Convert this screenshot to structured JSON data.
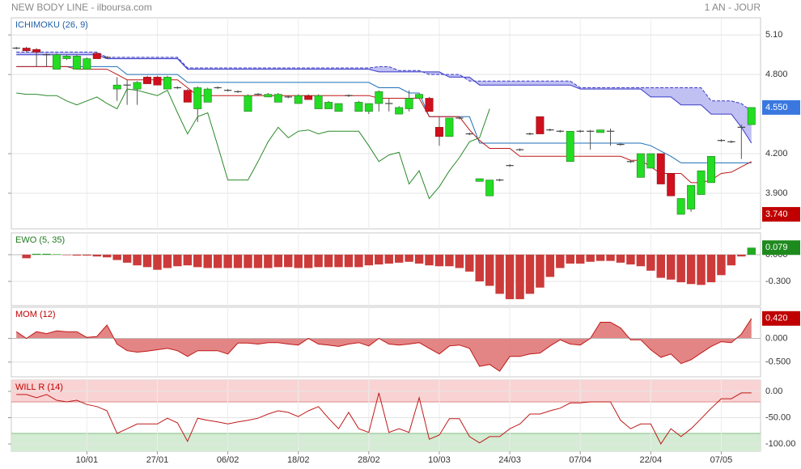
{
  "header": {
    "title": "NEW BODY LINE - ilboursa.com",
    "period": "1 AN - JOUR"
  },
  "chart_data": [
    {
      "type": "candlestick",
      "title": "ICHIMOKU (26, 9)",
      "title_color": "#1f5fa8",
      "ylim": [
        3.63,
        5.23
      ],
      "yticks": [
        {
          "value": 5.1,
          "label": "5.10"
        },
        {
          "value": 4.8,
          "label": "4.800"
        },
        {
          "value": 4.2,
          "label": "4.200"
        },
        {
          "value": 3.9,
          "label": "3.900"
        }
      ],
      "markers": [
        {
          "value": 4.55,
          "label": "4.550",
          "color": "#3a78e0"
        },
        {
          "value": 3.74,
          "label": "3.740",
          "color": "#c00000"
        }
      ],
      "up_color": "#22dd22",
      "down_color": "#d0101e",
      "open": [
        5.0,
        5.0,
        4.99,
        4.95,
        4.84,
        4.92,
        4.84,
        4.84,
        4.96,
        4.93,
        4.69,
        4.72,
        4.69,
        4.78,
        4.78,
        4.69,
        4.7,
        4.68,
        4.54,
        4.59,
        4.7,
        4.68,
        4.67,
        4.52,
        4.65,
        4.63,
        4.59,
        4.63,
        4.58,
        4.64,
        4.54,
        4.54,
        4.52,
        4.64,
        4.52,
        4.52,
        4.58,
        4.58,
        4.5,
        4.54,
        4.62,
        4.62,
        4.4,
        4.33,
        4.47,
        4.35,
        3.99,
        3.88,
        4.0,
        4.11,
        4.23,
        4.35,
        4.48,
        4.38,
        4.37,
        4.14,
        4.37,
        4.37,
        4.36,
        4.37,
        4.27,
        4.14,
        4.02,
        4.09,
        4.2,
        4.05,
        3.74,
        3.78,
        3.89,
        3.98,
        4.3,
        4.29,
        4.4,
        4.42
      ],
      "high": [
        5.01,
        5.01,
        5.0,
        4.96,
        4.96,
        4.95,
        4.95,
        4.93,
        4.97,
        4.94,
        4.78,
        4.76,
        4.75,
        4.79,
        4.79,
        4.79,
        4.71,
        4.69,
        4.71,
        4.7,
        4.71,
        4.69,
        4.68,
        4.65,
        4.66,
        4.66,
        4.66,
        4.64,
        4.65,
        4.65,
        4.65,
        4.6,
        4.58,
        4.65,
        4.6,
        4.58,
        4.68,
        4.62,
        4.56,
        4.68,
        4.65,
        4.63,
        4.48,
        4.47,
        4.48,
        4.36,
        4.01,
        4.0,
        4.01,
        4.12,
        4.24,
        4.36,
        4.48,
        4.39,
        4.38,
        4.37,
        4.38,
        4.38,
        4.38,
        4.39,
        4.28,
        4.15,
        4.2,
        4.2,
        4.2,
        4.05,
        3.86,
        3.96,
        4.07,
        4.18,
        4.31,
        4.3,
        4.42,
        4.55
      ],
      "low": [
        4.99,
        4.97,
        4.86,
        4.86,
        4.84,
        4.91,
        4.84,
        4.84,
        4.92,
        4.92,
        4.6,
        4.57,
        4.57,
        4.73,
        4.72,
        4.69,
        4.69,
        4.59,
        4.44,
        4.59,
        4.69,
        4.67,
        4.66,
        4.52,
        4.64,
        4.63,
        4.59,
        4.62,
        4.58,
        4.61,
        4.54,
        4.54,
        4.52,
        4.63,
        4.52,
        4.5,
        4.52,
        4.52,
        4.5,
        4.52,
        4.62,
        4.52,
        4.26,
        4.33,
        4.46,
        4.34,
        3.99,
        3.88,
        3.99,
        4.1,
        4.22,
        4.34,
        4.35,
        4.37,
        4.36,
        4.14,
        4.36,
        4.23,
        4.36,
        4.26,
        4.26,
        4.13,
        4.02,
        4.09,
        3.97,
        3.88,
        3.74,
        3.76,
        3.89,
        3.98,
        4.29,
        4.28,
        4.16,
        4.42
      ],
      "close": [
        5.0,
        4.98,
        4.97,
        4.95,
        4.95,
        4.94,
        4.94,
        4.92,
        4.92,
        4.93,
        4.72,
        4.72,
        4.74,
        4.73,
        4.72,
        4.78,
        4.7,
        4.59,
        4.7,
        4.69,
        4.7,
        4.68,
        4.67,
        4.64,
        4.65,
        4.65,
        4.65,
        4.63,
        4.64,
        4.61,
        4.64,
        4.59,
        4.58,
        4.64,
        4.59,
        4.58,
        4.67,
        4.58,
        4.55,
        4.62,
        4.65,
        4.52,
        4.33,
        4.47,
        4.47,
        4.35,
        4.01,
        4.0,
        4.0,
        4.11,
        4.23,
        4.35,
        4.35,
        4.38,
        4.37,
        4.37,
        4.37,
        4.37,
        4.38,
        4.37,
        4.27,
        4.14,
        4.2,
        4.2,
        3.97,
        3.88,
        3.86,
        3.96,
        4.07,
        4.18,
        4.3,
        4.29,
        4.4,
        4.55
      ],
      "tenkan_color": "#c01818",
      "tenkan": [
        4.86,
        4.86,
        4.86,
        4.86,
        4.86,
        4.86,
        4.84,
        4.84,
        4.84,
        4.84,
        4.8,
        4.76,
        4.76,
        4.76,
        4.76,
        4.76,
        4.76,
        4.7,
        4.64,
        4.64,
        4.64,
        4.64,
        4.64,
        4.64,
        4.64,
        4.64,
        4.64,
        4.64,
        4.64,
        4.64,
        4.64,
        4.64,
        4.64,
        4.64,
        4.64,
        4.64,
        4.62,
        4.62,
        4.62,
        4.62,
        4.62,
        4.48,
        4.48,
        4.48,
        4.48,
        4.38,
        4.3,
        4.24,
        4.24,
        4.24,
        4.18,
        4.18,
        4.18,
        4.18,
        4.18,
        4.18,
        4.18,
        4.18,
        4.18,
        4.18,
        4.18,
        4.15,
        4.15,
        4.1,
        4.05,
        4.05,
        4.05,
        3.98,
        3.98,
        4.0,
        4.05,
        4.06,
        4.1,
        4.14
      ],
      "kijun_color": "#1f6fb8",
      "kijun": [
        4.86,
        4.86,
        4.86,
        4.86,
        4.86,
        4.86,
        4.86,
        4.86,
        4.86,
        4.86,
        4.86,
        4.8,
        4.8,
        4.8,
        4.8,
        4.8,
        4.8,
        4.74,
        4.74,
        4.74,
        4.74,
        4.74,
        4.74,
        4.74,
        4.74,
        4.74,
        4.74,
        4.74,
        4.74,
        4.74,
        4.74,
        4.74,
        4.74,
        4.74,
        4.74,
        4.74,
        4.7,
        4.7,
        4.7,
        4.66,
        4.66,
        4.48,
        4.48,
        4.48,
        4.48,
        4.48,
        4.28,
        4.28,
        4.28,
        4.28,
        4.28,
        4.28,
        4.28,
        4.28,
        4.28,
        4.28,
        4.28,
        4.28,
        4.28,
        4.28,
        4.28,
        4.28,
        4.28,
        4.26,
        4.22,
        4.18,
        4.13,
        4.13,
        4.13,
        4.13,
        4.13,
        4.13,
        4.13,
        4.13
      ],
      "chikou_color": "#2a8a2a",
      "chikou": [
        4.66,
        4.65,
        4.65,
        4.64,
        4.64,
        4.6,
        4.57,
        4.6,
        4.63,
        4.58,
        4.54,
        4.69,
        4.68,
        4.66,
        4.64,
        4.68,
        4.51,
        4.35,
        4.48,
        4.51,
        4.26,
        4.0,
        4.0,
        4.0,
        4.14,
        4.29,
        4.4,
        4.32,
        4.37,
        4.38,
        4.35,
        4.37,
        4.37,
        4.37,
        4.37,
        4.26,
        4.14,
        4.19,
        4.21,
        3.97,
        4.07,
        3.86,
        3.95,
        4.07,
        4.17,
        4.29,
        4.32,
        4.54,
        null,
        null,
        null,
        null,
        null,
        null,
        null,
        null,
        null,
        null,
        null,
        null,
        null,
        null,
        null,
        null,
        null,
        null,
        null,
        null,
        null,
        null,
        null,
        null,
        null,
        null
      ],
      "cloud_color": "#b9b9f2",
      "cloud_line_color": "#3a3ac8",
      "cloud_upper": [
        4.97,
        4.97,
        4.97,
        4.97,
        4.97,
        4.97,
        4.97,
        4.97,
        4.97,
        4.93,
        4.93,
        4.93,
        4.93,
        4.93,
        4.93,
        4.93,
        4.93,
        4.85,
        4.85,
        4.85,
        4.85,
        4.85,
        4.85,
        4.85,
        4.85,
        4.85,
        4.85,
        4.85,
        4.85,
        4.85,
        4.85,
        4.85,
        4.85,
        4.85,
        4.85,
        4.85,
        4.86,
        4.86,
        4.83,
        4.83,
        4.83,
        4.8,
        4.8,
        4.8,
        4.8,
        4.75,
        4.75,
        4.75,
        4.75,
        4.75,
        4.75,
        4.75,
        4.75,
        4.75,
        4.75,
        4.75,
        4.7,
        4.7,
        4.7,
        4.7,
        4.7,
        4.7,
        4.7,
        4.7,
        4.7,
        4.7,
        4.7,
        4.7,
        4.7,
        4.6,
        4.6,
        4.6,
        4.58,
        4.52
      ],
      "cloud_lower": [
        4.95,
        4.95,
        4.95,
        4.95,
        4.95,
        4.95,
        4.95,
        4.95,
        4.95,
        4.92,
        4.92,
        4.92,
        4.92,
        4.92,
        4.92,
        4.92,
        4.92,
        4.84,
        4.84,
        4.84,
        4.84,
        4.84,
        4.84,
        4.84,
        4.84,
        4.84,
        4.84,
        4.84,
        4.84,
        4.84,
        4.84,
        4.84,
        4.84,
        4.84,
        4.84,
        4.84,
        4.82,
        4.82,
        4.82,
        4.82,
        4.82,
        4.82,
        4.82,
        4.78,
        4.78,
        4.78,
        4.72,
        4.72,
        4.72,
        4.72,
        4.72,
        4.72,
        4.72,
        4.72,
        4.72,
        4.72,
        4.69,
        4.69,
        4.69,
        4.69,
        4.69,
        4.69,
        4.69,
        4.63,
        4.63,
        4.63,
        4.57,
        4.57,
        4.57,
        4.5,
        4.5,
        4.5,
        4.4,
        4.28
      ]
    },
    {
      "type": "histogram_bars",
      "title": "EWO (5, 35)",
      "title_color": "#1e7a1e",
      "ylim": [
        -0.573,
        0.245
      ],
      "yticks": [
        {
          "value": 0,
          "label": "0.000"
        },
        {
          "value": -0.3,
          "label": "-0.300"
        }
      ],
      "markers": [
        {
          "value": 0.079,
          "label": "0.079",
          "color": "#1e8a1e"
        }
      ],
      "up_color": "#22aa22",
      "down_color": "#cc3a3a",
      "values": [
        0,
        -0.04,
        0.01,
        0.01,
        0.005,
        -0.005,
        -0.01,
        -0.01,
        -0.02,
        -0.03,
        -0.06,
        -0.09,
        -0.12,
        -0.14,
        -0.17,
        -0.15,
        -0.13,
        -0.12,
        -0.14,
        -0.15,
        -0.15,
        -0.15,
        -0.15,
        -0.15,
        -0.15,
        -0.15,
        -0.14,
        -0.14,
        -0.15,
        -0.15,
        -0.14,
        -0.14,
        -0.14,
        -0.14,
        -0.14,
        -0.12,
        -0.11,
        -0.1,
        -0.09,
        -0.08,
        -0.1,
        -0.12,
        -0.13,
        -0.13,
        -0.15,
        -0.19,
        -0.3,
        -0.35,
        -0.44,
        -0.5,
        -0.5,
        -0.44,
        -0.37,
        -0.25,
        -0.15,
        -0.1,
        -0.1,
        -0.08,
        -0.07,
        -0.07,
        -0.09,
        -0.11,
        -0.13,
        -0.18,
        -0.26,
        -0.28,
        -0.31,
        -0.33,
        -0.34,
        -0.31,
        -0.23,
        -0.12,
        -0.02,
        0.079
      ]
    },
    {
      "type": "area",
      "title": "MOM (12)",
      "title_color": "#c00000",
      "ylim": [
        -0.81,
        0.655
      ],
      "yticks": [
        {
          "value": 0,
          "label": "0.000"
        },
        {
          "value": -0.5,
          "label": "-0.500"
        }
      ],
      "markers": [
        {
          "value": 0.42,
          "label": "0.420",
          "color": "#c00000"
        }
      ],
      "color": "#c01818",
      "fill": "#e07878",
      "values": [
        0.14,
        0.0,
        0.14,
        0.1,
        0.16,
        0.14,
        0.14,
        0.02,
        0.04,
        0.28,
        -0.12,
        -0.26,
        -0.29,
        -0.27,
        -0.24,
        -0.21,
        -0.26,
        -0.38,
        -0.26,
        -0.26,
        -0.26,
        -0.33,
        -0.1,
        -0.1,
        -0.12,
        -0.09,
        -0.09,
        -0.12,
        -0.14,
        0.0,
        -0.12,
        -0.14,
        -0.17,
        -0.12,
        -0.09,
        -0.16,
        0.0,
        -0.12,
        -0.14,
        -0.12,
        -0.09,
        -0.21,
        -0.33,
        -0.16,
        -0.14,
        -0.21,
        -0.59,
        -0.55,
        -0.69,
        -0.38,
        -0.38,
        -0.33,
        -0.31,
        -0.16,
        -0.03,
        -0.12,
        -0.14,
        0.0,
        0.34,
        0.34,
        0.22,
        -0.03,
        -0.03,
        -0.24,
        -0.4,
        -0.33,
        -0.53,
        -0.45,
        -0.31,
        -0.17,
        -0.07,
        -0.09,
        0.09,
        0.42
      ]
    },
    {
      "type": "line",
      "title": "WILL R (14)",
      "title_color": "#c00000",
      "ylim": [
        -113.8,
        21.5
      ],
      "yticks": [
        {
          "value": 0,
          "label": "0.00"
        },
        {
          "value": -50,
          "label": "-50.00"
        },
        {
          "value": -100,
          "label": "-100.00"
        }
      ],
      "color": "#c01818",
      "zones": [
        {
          "above": -20,
          "color": "#f9d3d3",
          "line": "#d88"
        },
        {
          "below": -80,
          "color": "#d3ecd3",
          "line": "#8b8"
        }
      ],
      "values": [
        -6,
        -6,
        -12,
        -6,
        -17,
        -20,
        -17,
        -25,
        -29,
        -37,
        -80,
        -71,
        -62,
        -62,
        -62,
        -51,
        -60,
        -95,
        -51,
        -55,
        -58,
        -62,
        -58,
        -55,
        -51,
        -43,
        -37,
        -40,
        -48,
        -37,
        -29,
        -51,
        -71,
        -40,
        -71,
        -78,
        -3,
        -78,
        -71,
        -78,
        -12,
        -91,
        -83,
        -52,
        -52,
        -86,
        -98,
        -86,
        -86,
        -71,
        -62,
        -43,
        -43,
        -37,
        -32,
        -22,
        -22,
        -20,
        -20,
        -20,
        -55,
        -71,
        -62,
        -62,
        -100,
        -71,
        -86,
        -71,
        -52,
        -32,
        -14,
        -14,
        -3,
        -3
      ],
      "categories": [
        null,
        null,
        null,
        null,
        null,
        null,
        null,
        "10/01",
        null,
        null,
        null,
        null,
        null,
        null,
        "27/01",
        null,
        null,
        null,
        null,
        null,
        null,
        "06/02",
        null,
        null,
        null,
        null,
        null,
        null,
        "18/02",
        null,
        null,
        null,
        null,
        null,
        null,
        "28/02",
        null,
        null,
        null,
        null,
        null,
        null,
        "10/03",
        null,
        null,
        null,
        null,
        null,
        null,
        "24/03",
        null,
        null,
        null,
        null,
        null,
        null,
        "07/04",
        null,
        null,
        null,
        null,
        null,
        null,
        "22/04",
        null,
        null,
        null,
        null,
        null,
        null,
        "07/05",
        null,
        null,
        null
      ]
    }
  ]
}
